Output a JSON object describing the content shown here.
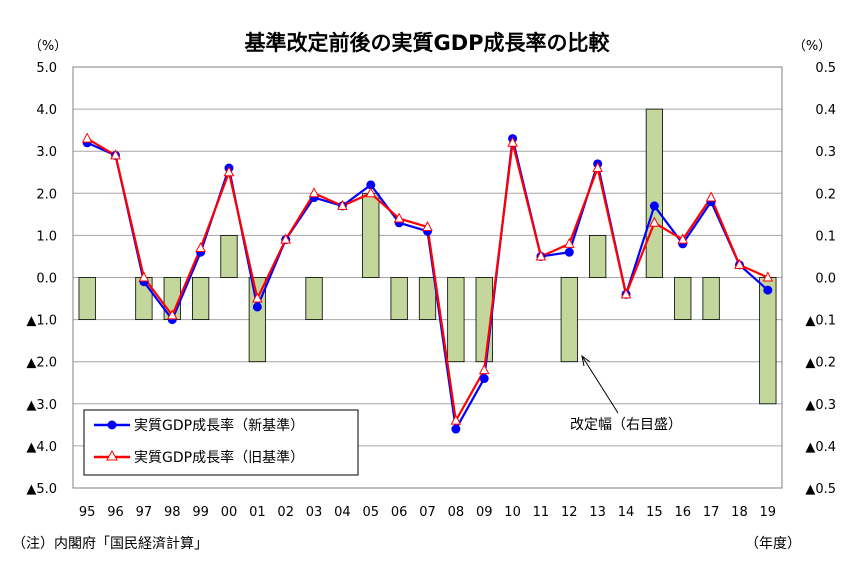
{
  "chart_data": {
    "type": "bar+line",
    "title": "基準改定前後の実質GDP成長率の比較",
    "left_axis": {
      "unit_label": "（%）",
      "ylim": [
        -5.0,
        5.0
      ],
      "ticks": [
        5.0,
        4.0,
        3.0,
        2.0,
        1.0,
        0.0,
        -1.0,
        -2.0,
        -3.0,
        -4.0,
        -5.0
      ],
      "tick_labels": [
        "5.0",
        "4.0",
        "3.0",
        "2.0",
        "1.0",
        "0.0",
        "▲1.0",
        "▲2.0",
        "▲3.0",
        "▲4.0",
        "▲5.0"
      ]
    },
    "right_axis": {
      "unit_label": "（%）",
      "ylim": [
        -0.5,
        0.5
      ],
      "ticks": [
        0.5,
        0.4,
        0.3,
        0.2,
        0.1,
        0.0,
        -0.1,
        -0.2,
        -0.3,
        -0.4,
        -0.5
      ],
      "tick_labels": [
        "0.5",
        "0.4",
        "0.3",
        "0.2",
        "0.1",
        "0.0",
        "▲0.1",
        "▲0.2",
        "▲0.3",
        "▲0.4",
        "▲0.5"
      ]
    },
    "categories": [
      "95",
      "96",
      "97",
      "98",
      "99",
      "00",
      "01",
      "02",
      "03",
      "04",
      "05",
      "06",
      "07",
      "08",
      "09",
      "10",
      "11",
      "12",
      "13",
      "14",
      "15",
      "16",
      "17",
      "18",
      "19"
    ],
    "x_unit_label": "（年度）",
    "grid": true,
    "legend_position": "lower-left",
    "series": [
      {
        "name": "実質GDP成長率（新基準）",
        "kind": "line",
        "axis": "left",
        "color": "#0000ff",
        "marker": "circle",
        "values": [
          3.2,
          2.9,
          -0.1,
          -1.0,
          0.6,
          2.6,
          -0.7,
          0.9,
          1.9,
          1.7,
          2.2,
          1.3,
          1.1,
          -3.6,
          -2.4,
          3.3,
          0.5,
          0.6,
          2.7,
          -0.4,
          1.7,
          0.8,
          1.8,
          0.3,
          -0.3
        ]
      },
      {
        "name": "実質GDP成長率（旧基準）",
        "kind": "line",
        "axis": "left",
        "color": "#ff0000",
        "marker": "triangle",
        "values": [
          3.3,
          2.9,
          0.0,
          -0.9,
          0.7,
          2.5,
          -0.5,
          0.9,
          2.0,
          1.7,
          2.0,
          1.4,
          1.2,
          -3.4,
          -2.2,
          3.2,
          0.5,
          0.8,
          2.6,
          -0.4,
          1.3,
          0.9,
          1.9,
          0.3,
          0.0
        ]
      },
      {
        "name": "改定幅（右目盛）",
        "kind": "bar",
        "axis": "right",
        "color": "#c3d69b",
        "stroke": "#000000",
        "values": [
          -0.1,
          0.0,
          -0.1,
          -0.1,
          -0.1,
          0.1,
          -0.2,
          0.0,
          -0.1,
          0.0,
          0.2,
          -0.1,
          -0.1,
          -0.2,
          -0.2,
          0.0,
          0.0,
          -0.2,
          0.1,
          0.0,
          0.4,
          -0.1,
          -0.1,
          0.0,
          -0.3
        ]
      }
    ],
    "annotation": "改定幅（右目盛）",
    "source_note": "（注）内閣府「国民経済計算」"
  }
}
